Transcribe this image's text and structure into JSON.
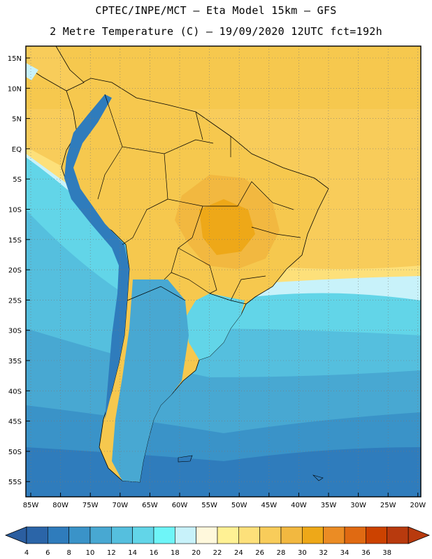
{
  "header": {
    "line1": "CPTEC/INPE/MCT –  Eta Model 15km – GFS",
    "line2": "2 Metre Temperature (C) – 19/09/2020 12UTC fct=192h"
  },
  "axes": {
    "lat_labels": [
      "15N",
      "10N",
      "5N",
      "EQ",
      "5S",
      "10S",
      "15S",
      "20S",
      "25S",
      "30S",
      "35S",
      "40S",
      "45S",
      "50S",
      "55S"
    ],
    "lon_labels": [
      "85W",
      "80W",
      "75W",
      "70W",
      "65W",
      "60W",
      "55W",
      "50W",
      "45W",
      "40W",
      "35W",
      "30W",
      "25W",
      "20W"
    ]
  },
  "legend": {
    "ticks": [
      "4",
      "6",
      "8",
      "10",
      "12",
      "14",
      "16",
      "18",
      "20",
      "22",
      "24",
      "26",
      "28",
      "30",
      "32",
      "34",
      "36",
      "38"
    ],
    "colors": [
      "#2b65a8",
      "#2f7cbc",
      "#3a93c8",
      "#48a8d2",
      "#55bfde",
      "#62d5e8",
      "#6ef5f8",
      "#c8f2fa",
      "#fff8dc",
      "#fff194",
      "#fde07a",
      "#f8cc5a",
      "#f2b840",
      "#eea818",
      "#eb8c24",
      "#e06a12",
      "#cc4200",
      "#b83a0e"
    ],
    "low_color": "#2b5ea0",
    "high_color": "#b83a0e"
  }
}
